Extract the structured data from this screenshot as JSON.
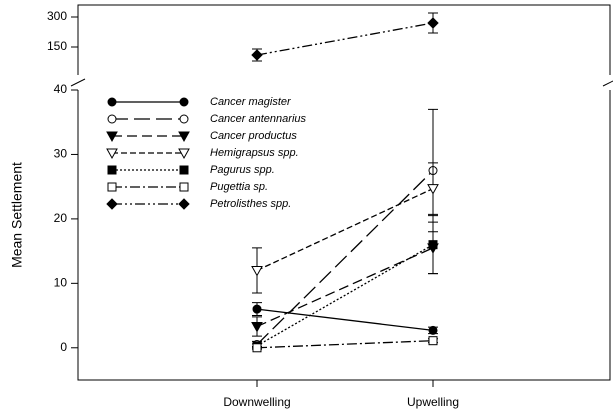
{
  "chart_data": {
    "type": "line",
    "y_label": "Mean Settlement",
    "categories": [
      "Downwelling",
      "Upwelling"
    ],
    "ylim": [
      -5,
      40
    ],
    "yticks": [
      0,
      10,
      20,
      30,
      40
    ],
    "ylim_upper": [
      10,
      360
    ],
    "yticks_upper": [
      150,
      300
    ],
    "series": [
      {
        "name": "Cancer magister",
        "marker": "circle",
        "filled": true,
        "dash": "none",
        "values": [
          6,
          2.7
        ],
        "errors": [
          1,
          0.5
        ]
      },
      {
        "name": "Cancer antennarius",
        "marker": "circle",
        "filled": false,
        "dash": "16 6",
        "values": [
          0.5,
          27.5
        ],
        "errors": [
          0.5,
          9.5
        ]
      },
      {
        "name": "Cancer productus",
        "marker": "triangle",
        "filled": true,
        "dash": "10 5",
        "values": [
          3.3,
          15.5
        ],
        "errors": [
          1.5,
          4
        ]
      },
      {
        "name": "Hemigrapsus spp.",
        "marker": "triangle",
        "filled": false,
        "dash": "6 3",
        "values": [
          12,
          24.7
        ],
        "errors": [
          3.5,
          4
        ]
      },
      {
        "name": "Pagurus spp.",
        "marker": "square",
        "filled": true,
        "dash": "2 2",
        "values": [
          0.3,
          16
        ],
        "errors": [
          0.3,
          4.5
        ]
      },
      {
        "name": "Pugettia sp.",
        "marker": "square",
        "filled": false,
        "dash": "10 3 2 3",
        "values": [
          0,
          1.1
        ],
        "errors": [
          0.2,
          0.3
        ]
      },
      {
        "name": "Petrolisthes spp.",
        "marker": "diamond",
        "filled": true,
        "dash": "10 3 2 3 2 3",
        "axis": "upper",
        "values": [
          110,
          270
        ],
        "errors": [
          30,
          50
        ]
      }
    ]
  }
}
